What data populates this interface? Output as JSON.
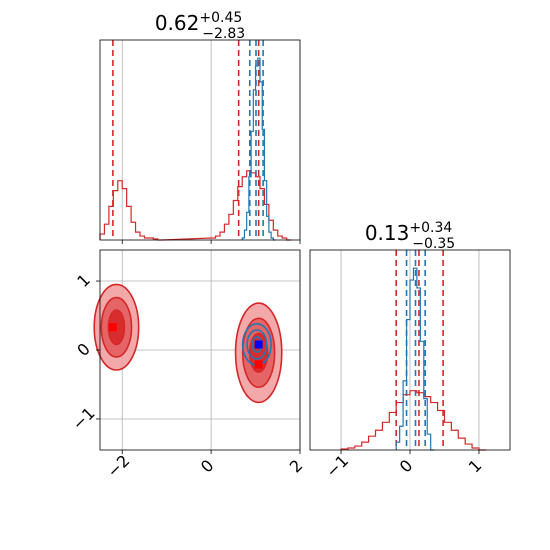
{
  "colors": {
    "red": "#d62728",
    "blue": "#1f77b4",
    "red_fill_light": "#f2a0a1",
    "red_fill_mid": "#e35d5f",
    "red_fill_dark": "#d62728",
    "grid": "#b0b0b0"
  },
  "chart_data": [
    {
      "type": "line",
      "panel": "top-left",
      "title": {
        "value": "0.62",
        "upper": "+0.45",
        "lower": "−2.83"
      },
      "xlim": [
        -2.5,
        2.0
      ],
      "x_ticks": [
        -2,
        0,
        2
      ],
      "x_tick_labels": [
        "−2",
        "0",
        "2"
      ],
      "quantile_lines": {
        "red": [
          -2.21,
          0.62,
          1.07
        ],
        "blue": [
          0.87,
          1.01,
          1.17
        ]
      },
      "series": [
        {
          "color": "red",
          "bins": [
            -2.5,
            -2.4,
            -2.3,
            -2.2,
            -2.1,
            -2.0,
            -1.9,
            -1.8,
            -1.7,
            -1.6,
            -1.5,
            -1.4,
            -1.3,
            -1.2,
            0.0,
            0.1,
            0.2,
            0.3,
            0.4,
            0.5,
            0.6,
            0.7,
            0.8,
            0.9,
            1.0,
            1.1,
            1.2,
            1.3,
            1.4,
            1.5,
            1.6,
            1.7
          ],
          "values": [
            0.03,
            0.08,
            0.17,
            0.25,
            0.3,
            0.26,
            0.17,
            0.09,
            0.04,
            0.02,
            0.01,
            0.01,
            0.005,
            0,
            0.01,
            0.02,
            0.04,
            0.08,
            0.13,
            0.2,
            0.27,
            0.32,
            0.35,
            0.34,
            0.32,
            0.26,
            0.18,
            0.1,
            0.05,
            0.02,
            0.01,
            0
          ]
        },
        {
          "color": "blue",
          "bins": [
            0.7,
            0.75,
            0.8,
            0.85,
            0.9,
            0.95,
            1.0,
            1.05,
            1.1,
            1.15,
            1.2,
            1.25,
            1.3,
            1.35,
            1.4
          ],
          "values": [
            0.01,
            0.05,
            0.14,
            0.32,
            0.55,
            0.76,
            0.88,
            0.92,
            0.8,
            0.56,
            0.3,
            0.12,
            0.04,
            0.01,
            0
          ]
        }
      ]
    },
    {
      "type": "line",
      "panel": "bottom-right",
      "title": {
        "value": "0.13",
        "upper": "+0.34",
        "lower": "−0.35"
      },
      "xlim": [
        -1.45,
        1.45
      ],
      "x_ticks": [
        -1,
        0,
        1
      ],
      "x_tick_labels": [
        "−1",
        "0",
        "1"
      ],
      "quantile_lines": {
        "red": [
          -0.2,
          0.13,
          0.48
        ],
        "blue": [
          -0.05,
          0.08,
          0.22
        ]
      },
      "series": [
        {
          "color": "red",
          "bins": [
            -1.0,
            -0.9,
            -0.8,
            -0.7,
            -0.6,
            -0.5,
            -0.4,
            -0.3,
            -0.2,
            -0.1,
            0.0,
            0.1,
            0.2,
            0.3,
            0.4,
            0.5,
            0.6,
            0.7,
            0.8,
            0.9,
            1.0
          ],
          "values": [
            0.005,
            0.01,
            0.02,
            0.04,
            0.07,
            0.1,
            0.14,
            0.19,
            0.24,
            0.28,
            0.3,
            0.29,
            0.27,
            0.24,
            0.2,
            0.14,
            0.1,
            0.06,
            0.03,
            0.01,
            0
          ]
        },
        {
          "color": "blue",
          "bins": [
            -0.2,
            -0.15,
            -0.1,
            -0.05,
            0.0,
            0.05,
            0.1,
            0.15,
            0.2,
            0.25,
            0.3
          ],
          "values": [
            0.04,
            0.12,
            0.35,
            0.66,
            0.86,
            0.92,
            0.82,
            0.55,
            0.26,
            0.08,
            0
          ]
        }
      ]
    },
    {
      "type": "scatter",
      "panel": "bottom-left",
      "xlim": [
        -2.5,
        2.0
      ],
      "ylim": [
        -1.45,
        1.45
      ],
      "x_ticks": [
        -2,
        0,
        2
      ],
      "x_tick_labels": [
        "−2",
        "0",
        "2"
      ],
      "y_ticks": [
        -1,
        0,
        1
      ],
      "y_tick_labels": [
        "−1",
        "0",
        "1"
      ],
      "markers": [
        {
          "color": "red",
          "x": -2.21,
          "y": 0.33
        },
        {
          "color": "red",
          "x": 1.07,
          "y": -0.21
        },
        {
          "color": "blue",
          "x": 1.07,
          "y": 0.08
        }
      ],
      "contours": [
        {
          "color": "red",
          "cx": -2.13,
          "cy": 0.33,
          "levels": [
            {
              "rx": 0.5,
              "ry": 0.62,
              "shade": "light"
            },
            {
              "rx": 0.34,
              "ry": 0.43,
              "shade": "mid"
            },
            {
              "rx": 0.18,
              "ry": 0.25,
              "shade": "dark"
            }
          ]
        },
        {
          "color": "red",
          "cx": 1.07,
          "cy": -0.04,
          "levels": [
            {
              "rx": 0.52,
              "ry": 0.72,
              "shade": "light"
            },
            {
              "rx": 0.36,
              "ry": 0.5,
              "shade": "mid"
            },
            {
              "rx": 0.2,
              "ry": 0.28,
              "shade": "dark"
            }
          ]
        },
        {
          "color": "blue",
          "cx": 1.03,
          "cy": 0.08,
          "levels": [
            {
              "rx": 0.32,
              "ry": 0.3
            },
            {
              "rx": 0.22,
              "ry": 0.21
            },
            {
              "rx": 0.11,
              "ry": 0.11
            }
          ]
        }
      ]
    }
  ]
}
